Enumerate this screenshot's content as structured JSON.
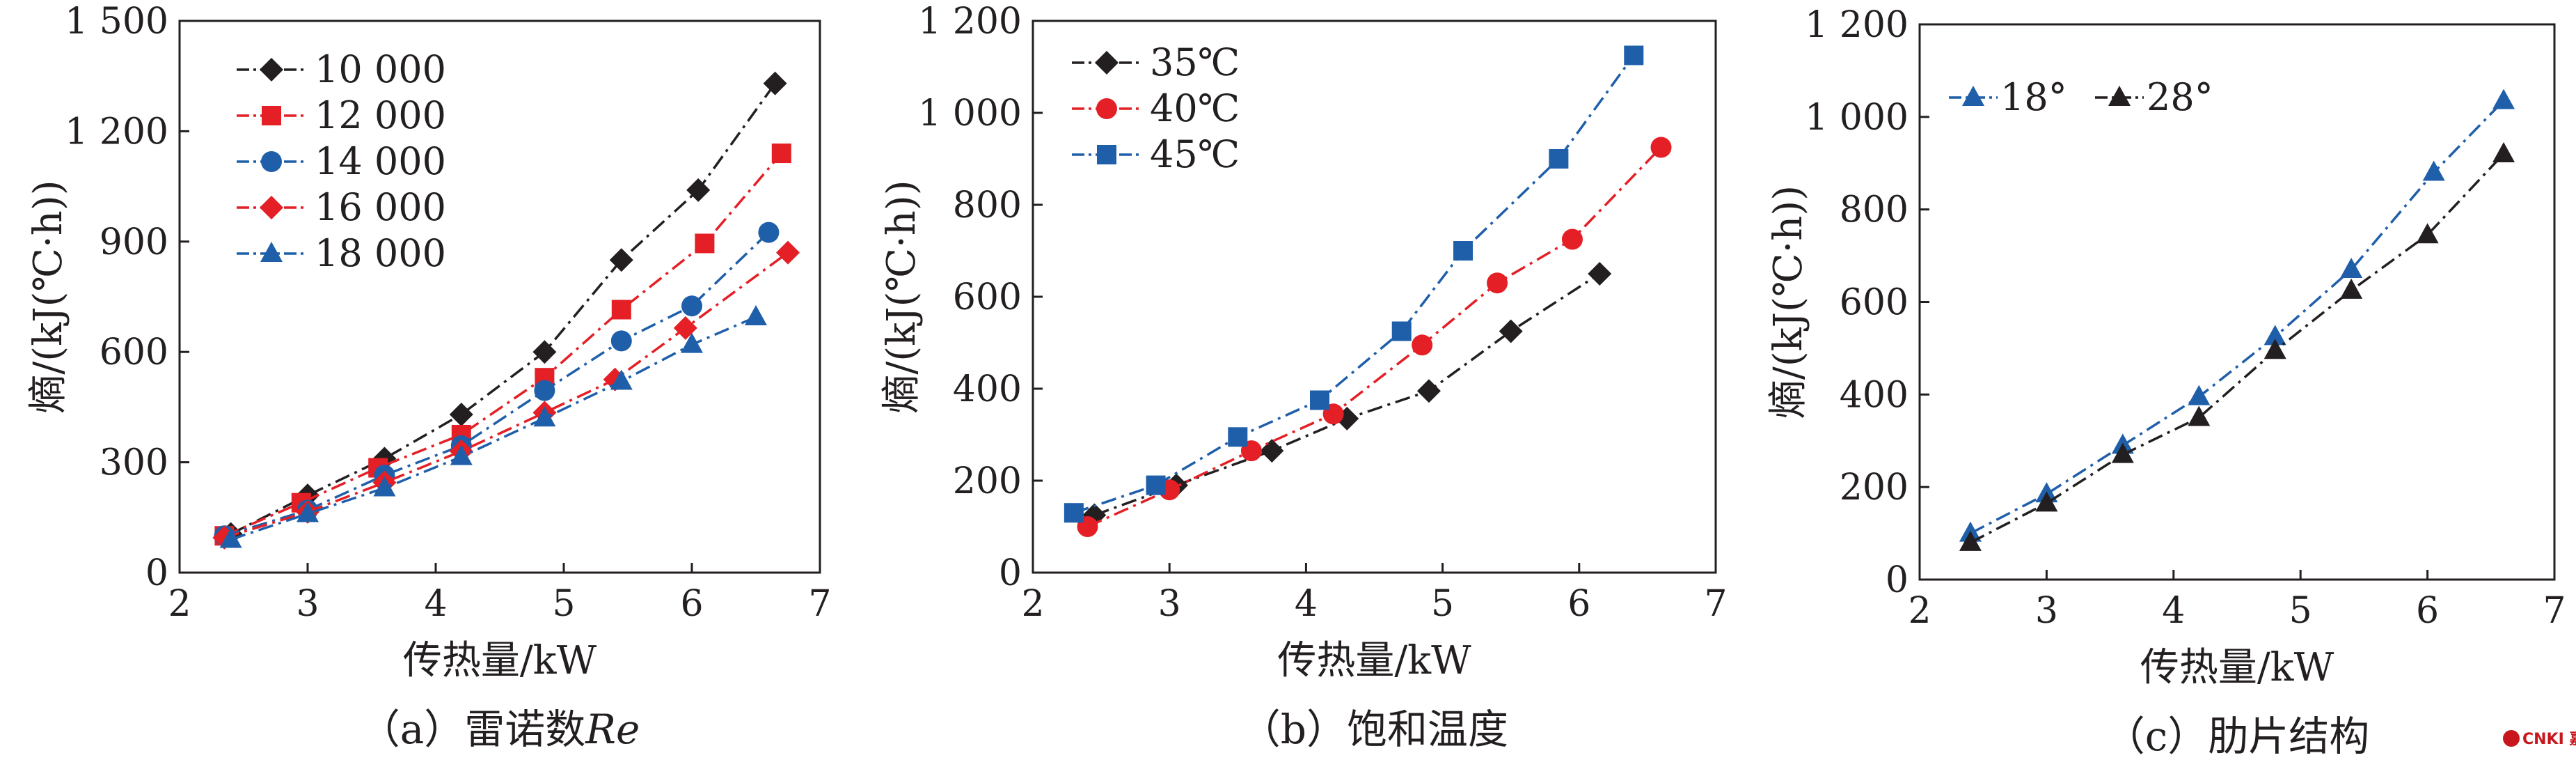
{
  "chart_data": [
    {
      "id": "a",
      "type": "line",
      "caption_prefix": "（a）雷诺数",
      "caption_italic": "Re",
      "xlabel": "传热量/kW",
      "ylabel": "熵/(kJ(℃·h))",
      "xlim": [
        2,
        7
      ],
      "ylim": [
        0,
        1500
      ],
      "xticks": [
        2,
        3,
        4,
        5,
        6,
        7
      ],
      "yticks": [
        0,
        300,
        600,
        900,
        1200,
        1500
      ],
      "ytick_labels": [
        "0",
        "300",
        "600",
        "900",
        "1 200",
        "1 500"
      ],
      "grid": false,
      "legend_position": "top-left",
      "series": [
        {
          "name": "10 000",
          "color": "#231f20",
          "marker": "diamond",
          "x": [
            2.4,
            3.0,
            3.6,
            4.2,
            4.85,
            5.45,
            6.05,
            6.65
          ],
          "y": [
            105,
            210,
            310,
            430,
            600,
            850,
            1040,
            1330
          ]
        },
        {
          "name": "12 000",
          "color": "#e41f26",
          "marker": "square",
          "x": [
            2.35,
            2.95,
            3.55,
            4.2,
            4.85,
            5.45,
            6.1,
            6.7
          ],
          "y": [
            100,
            190,
            285,
            375,
            530,
            715,
            895,
            1140
          ]
        },
        {
          "name": "14 000",
          "color": "#1f5faa",
          "marker": "circle",
          "x": [
            2.35,
            3.0,
            3.6,
            4.2,
            4.85,
            5.45,
            6.0,
            6.6
          ],
          "y": [
            100,
            170,
            265,
            345,
            495,
            630,
            725,
            925
          ]
        },
        {
          "name": "16 000",
          "color": "#e41f26",
          "marker": "diamond",
          "x": [
            2.35,
            3.0,
            3.6,
            4.2,
            4.85,
            5.4,
            5.95,
            6.75
          ],
          "y": [
            95,
            165,
            245,
            330,
            435,
            525,
            665,
            870
          ]
        },
        {
          "name": "18 000",
          "color": "#1f5faa",
          "marker": "triangle",
          "x": [
            2.4,
            3.0,
            3.6,
            4.2,
            4.85,
            5.45,
            6.0,
            6.5
          ],
          "y": [
            90,
            160,
            230,
            315,
            420,
            520,
            620,
            695
          ]
        }
      ]
    },
    {
      "id": "b",
      "type": "line",
      "caption_prefix": "（b）饱和温度",
      "caption_italic": "",
      "xlabel": "传热量/kW",
      "ylabel": "熵/(kJ(℃·h))",
      "xlim": [
        2,
        7
      ],
      "ylim": [
        0,
        1200
      ],
      "xticks": [
        2,
        3,
        4,
        5,
        6,
        7
      ],
      "yticks": [
        0,
        200,
        400,
        600,
        800,
        1000,
        1200
      ],
      "ytick_labels": [
        "0",
        "200",
        "400",
        "600",
        "800",
        "1 000",
        "1 200"
      ],
      "grid": false,
      "legend_position": "top-left",
      "series": [
        {
          "name": "35℃",
          "color": "#231f20",
          "marker": "diamond",
          "x": [
            2.45,
            3.05,
            3.75,
            4.3,
            4.9,
            5.5,
            6.15
          ],
          "y": [
            125,
            190,
            265,
            335,
            395,
            525,
            650
          ]
        },
        {
          "name": "40℃",
          "color": "#e41f26",
          "marker": "circle",
          "x": [
            2.4,
            3.0,
            3.6,
            4.2,
            4.85,
            5.4,
            5.95,
            6.6
          ],
          "y": [
            100,
            180,
            265,
            345,
            495,
            630,
            725,
            925
          ]
        },
        {
          "name": "45℃",
          "color": "#1f5faa",
          "marker": "square",
          "x": [
            2.3,
            2.9,
            3.5,
            4.1,
            4.7,
            5.15,
            5.85,
            6.4
          ],
          "y": [
            130,
            190,
            295,
            375,
            525,
            700,
            900,
            1125
          ]
        }
      ]
    },
    {
      "id": "c",
      "type": "line",
      "caption_prefix": "（c）肋片结构",
      "caption_italic": "",
      "xlabel": "传热量/kW",
      "ylabel": "熵/(kJ(℃·h))",
      "xlim": [
        2,
        7
      ],
      "ylim": [
        0,
        1200
      ],
      "xticks": [
        2,
        3,
        4,
        5,
        6,
        7
      ],
      "yticks": [
        0,
        200,
        400,
        600,
        800,
        1000,
        1200
      ],
      "ytick_labels": [
        "0",
        "200",
        "400",
        "600",
        "800",
        "1 000",
        "1 200"
      ],
      "grid": false,
      "legend_position": "top-left",
      "legend_inline": true,
      "series": [
        {
          "name": "18°",
          "color": "#1f5faa",
          "marker": "triangle",
          "x": [
            2.4,
            3.0,
            3.6,
            4.2,
            4.8,
            5.4,
            6.05,
            6.6
          ],
          "y": [
            100,
            185,
            290,
            395,
            525,
            670,
            880,
            1035
          ]
        },
        {
          "name": "28°",
          "color": "#231f20",
          "marker": "triangle",
          "x": [
            2.4,
            3.0,
            3.6,
            4.2,
            4.8,
            5.4,
            6.0,
            6.6
          ],
          "y": [
            80,
            165,
            270,
            350,
            495,
            625,
            745,
            920
          ]
        }
      ]
    }
  ],
  "watermark": "CNKI 嘉达信"
}
